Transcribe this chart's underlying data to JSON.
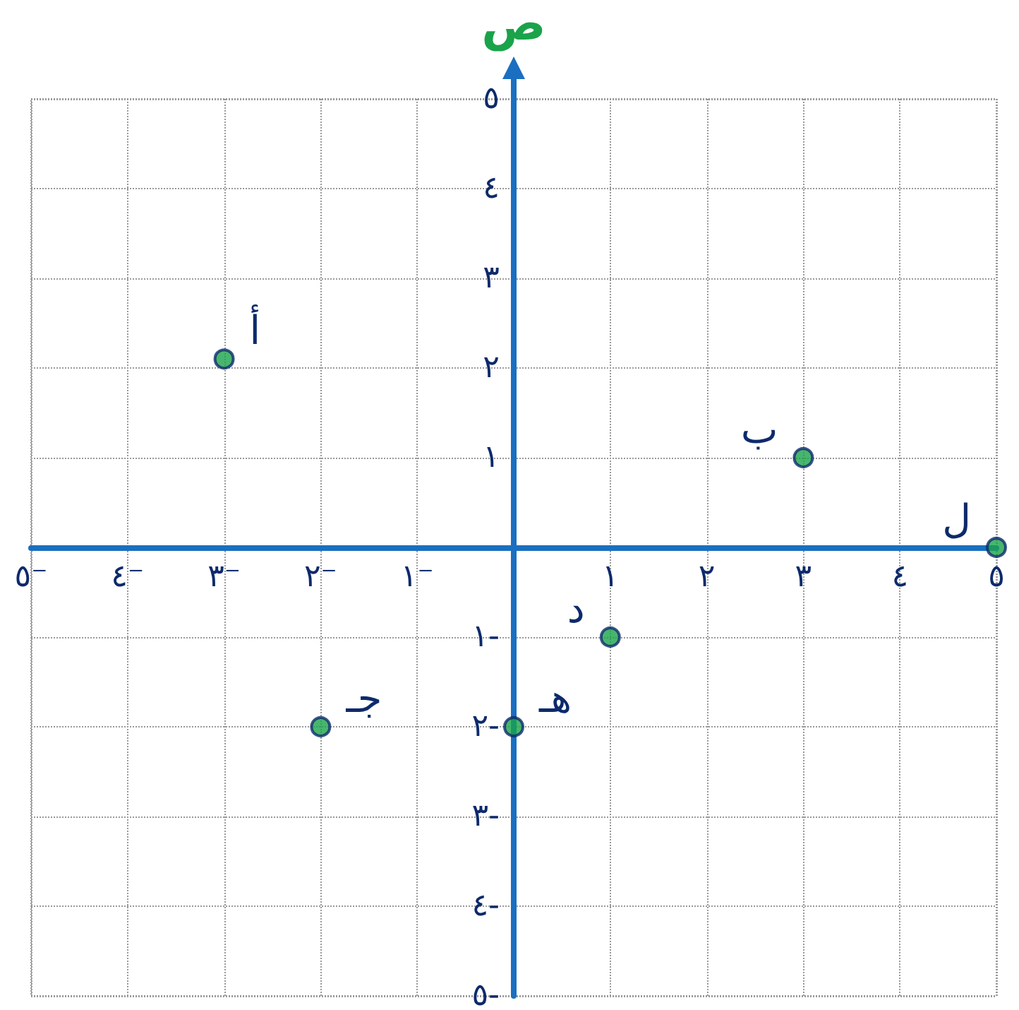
{
  "chart_data": {
    "type": "scatter",
    "ylabel": "ص",
    "x": [
      -3,
      3,
      -2,
      1,
      0,
      5
    ],
    "series": [
      {
        "color": "#1aa34a",
        "values": [
          2.1,
          1,
          -2,
          -1,
          -2,
          0
        ]
      }
    ],
    "xlim": [
      -5,
      5
    ],
    "ylim": [
      -5,
      5
    ],
    "xticks": [
      {
        "value": -5,
        "label": "٥⁻"
      },
      {
        "value": -4,
        "label": "٤⁻"
      },
      {
        "value": -3,
        "label": "٣⁻"
      },
      {
        "value": -2,
        "label": "٢⁻"
      },
      {
        "value": -1,
        "label": "١⁻"
      },
      {
        "value": 0,
        "label": null
      },
      {
        "value": 1,
        "label": "١"
      },
      {
        "value": 2,
        "label": "٢"
      },
      {
        "value": 3,
        "label": "٣"
      },
      {
        "value": 4,
        "label": "٤"
      },
      {
        "value": 5,
        "label": "٥"
      }
    ],
    "yticks": [
      {
        "value": -5,
        "label": "٥-"
      },
      {
        "value": -4,
        "label": "٤-"
      },
      {
        "value": -3,
        "label": "٣-"
      },
      {
        "value": -2,
        "label": "٢-"
      },
      {
        "value": -1,
        "label": "١-"
      },
      {
        "value": 0,
        "label": null
      },
      {
        "value": 1,
        "label": "١"
      },
      {
        "value": 2,
        "label": "٢"
      },
      {
        "value": 3,
        "label": "٣"
      },
      {
        "value": 4,
        "label": "٤"
      },
      {
        "value": 5,
        "label": "٥"
      }
    ],
    "annotations": [
      {
        "text": "أ",
        "x": -3,
        "y": 2.1
      },
      {
        "text": "ب",
        "x": 3,
        "y": 1
      },
      {
        "text": "جـ",
        "x": -2,
        "y": -2
      },
      {
        "text": "د",
        "x": 1,
        "y": -1
      },
      {
        "text": "هـ",
        "x": 0,
        "y": -2
      },
      {
        "text": "ل",
        "x": 5,
        "y": 0
      }
    ],
    "grid": true,
    "marker": "circle"
  }
}
